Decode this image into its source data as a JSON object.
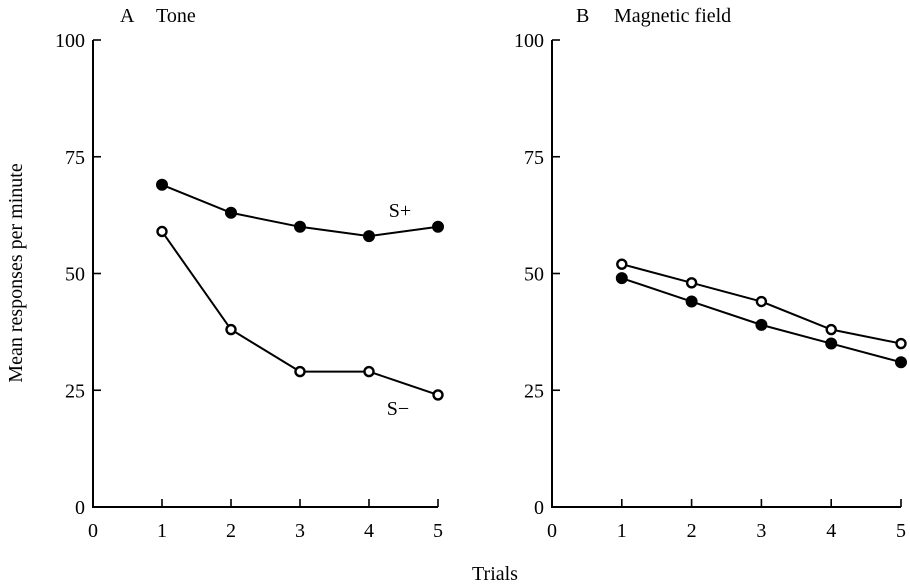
{
  "shared": {
    "xlabel": "Trials",
    "ylabel": "Mean responses per minute"
  },
  "chart_data": [
    {
      "type": "line",
      "panel_letter": "A",
      "title": "Tone",
      "x": [
        1,
        2,
        3,
        4,
        5
      ],
      "xlim": [
        0,
        5
      ],
      "ylim": [
        0,
        100
      ],
      "xticks": [
        "0",
        "1",
        "2",
        "3",
        "4",
        "5"
      ],
      "yticks": [
        "0",
        "25",
        "50",
        "75",
        "100"
      ],
      "grid": false,
      "series": [
        {
          "name": "S+",
          "marker": "filled-circle",
          "values": [
            69,
            63,
            60,
            58,
            60
          ]
        },
        {
          "name": "S−",
          "marker": "open-circle",
          "values": [
            59,
            38,
            29,
            29,
            24
          ]
        }
      ]
    },
    {
      "type": "line",
      "panel_letter": "B",
      "title": "Magnetic field",
      "x": [
        1,
        2,
        3,
        4,
        5
      ],
      "xlim": [
        0,
        5
      ],
      "ylim": [
        0,
        100
      ],
      "xticks": [
        "0",
        "1",
        "2",
        "3",
        "4",
        "5"
      ],
      "yticks": [
        "0",
        "25",
        "50",
        "75",
        "100"
      ],
      "grid": false,
      "series": [
        {
          "marker": "open-circle",
          "values": [
            52,
            48,
            44,
            38,
            35
          ]
        },
        {
          "marker": "filled-circle",
          "values": [
            49,
            44,
            39,
            35,
            31
          ]
        }
      ]
    }
  ]
}
